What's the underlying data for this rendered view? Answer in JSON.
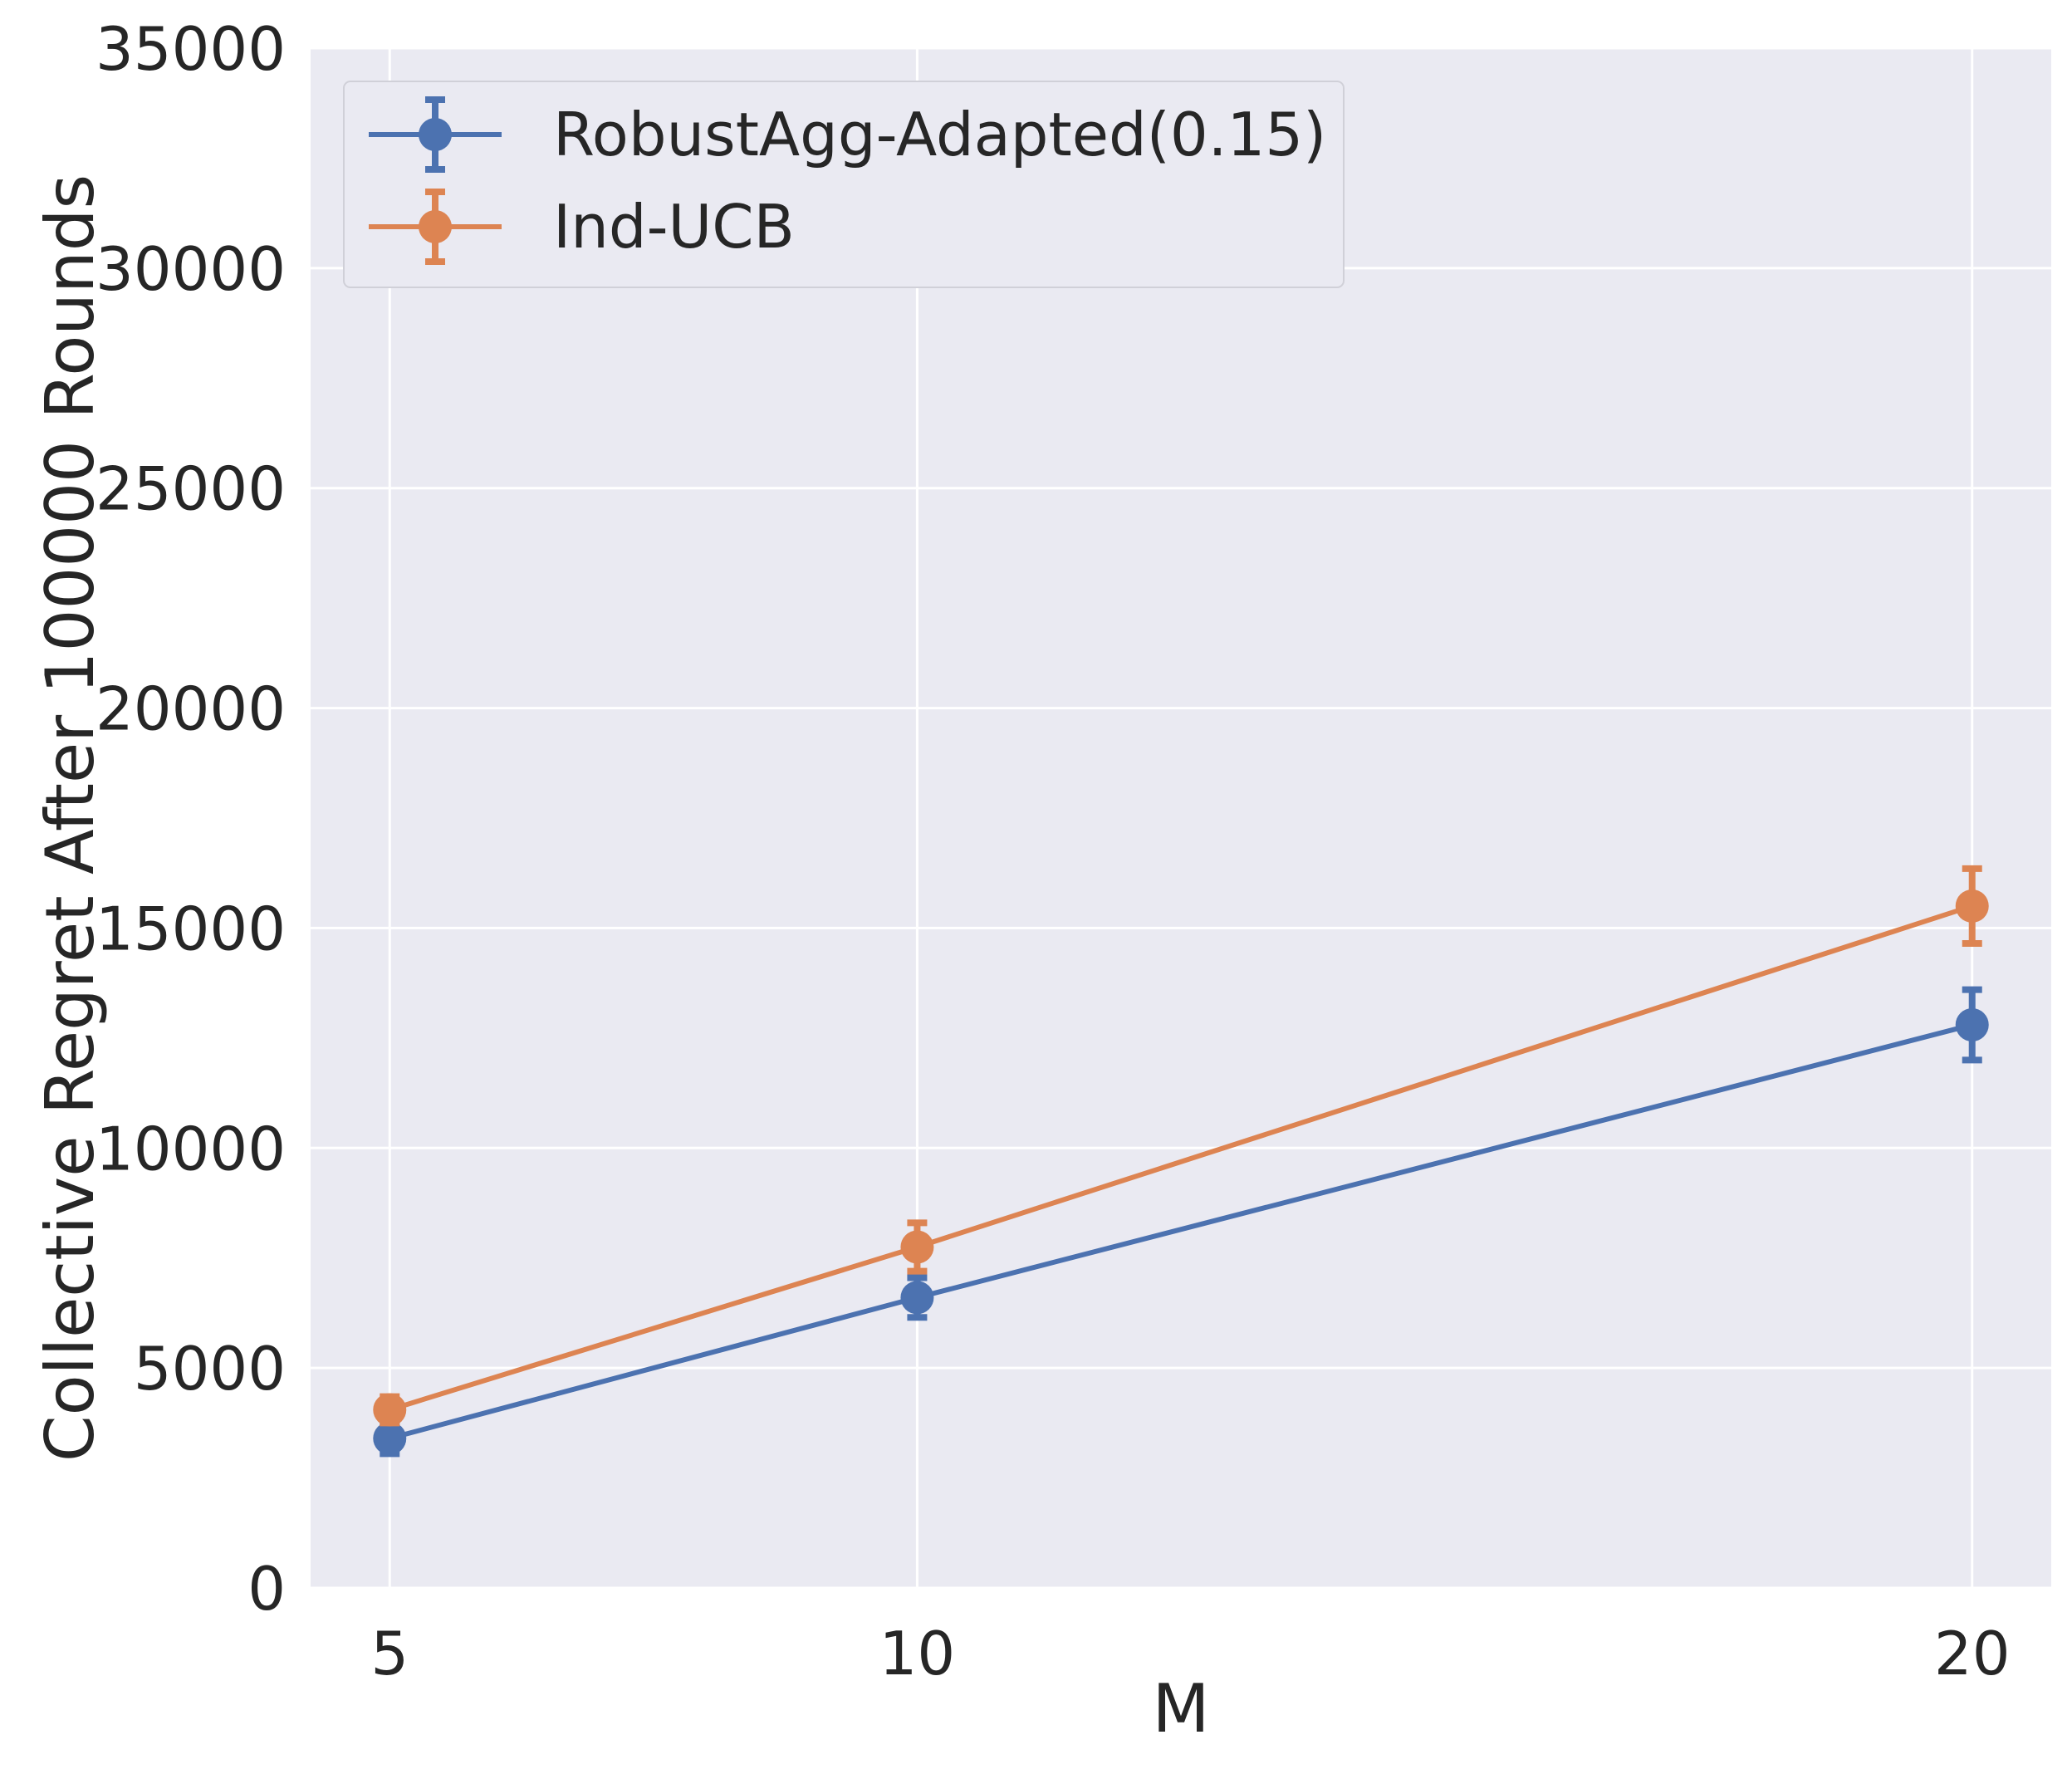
{
  "chart_data": {
    "type": "line",
    "xlabel": "M",
    "ylabel": "Collective Regret After 100000 Rounds",
    "x": [
      5,
      10,
      20
    ],
    "xticks": [
      "5",
      "10",
      "20"
    ],
    "yticks": [
      "0",
      "5000",
      "10000",
      "15000",
      "20000",
      "25000",
      "30000",
      "35000"
    ],
    "xlim": [
      4.25,
      20.75
    ],
    "ylim": [
      0,
      35000
    ],
    "grid": true,
    "legend_position": "top-left",
    "colors": {
      "plot_bg": "#eaeaf2",
      "grid": "#ffffff"
    },
    "series": [
      {
        "name": "RobustAgg-Adapted(0.15)",
        "color": "#4c72b0",
        "values": [
          3400,
          6600,
          12800
        ],
        "errors": [
          350,
          450,
          800
        ]
      },
      {
        "name": "Ind-UCB",
        "color": "#dd8452",
        "values": [
          4050,
          7750,
          15500
        ],
        "errors": [
          300,
          550,
          850
        ]
      }
    ]
  }
}
